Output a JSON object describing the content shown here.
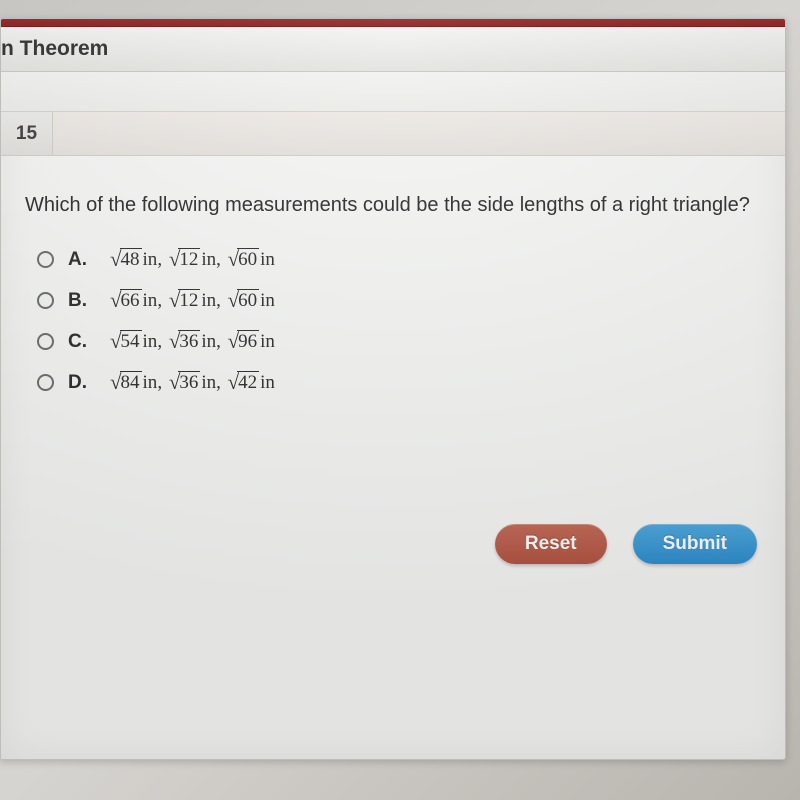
{
  "header": {
    "title": "n Theorem"
  },
  "question_number": "15",
  "prompt": "Which of the following measurements could be the side lengths of a right triangle?",
  "options": [
    {
      "label": "A.",
      "values": [
        48,
        12,
        60
      ],
      "unit": "in"
    },
    {
      "label": "B.",
      "values": [
        66,
        12,
        60
      ],
      "unit": "in"
    },
    {
      "label": "C.",
      "values": [
        54,
        36,
        96
      ],
      "unit": "in"
    },
    {
      "label": "D.",
      "values": [
        84,
        36,
        42
      ],
      "unit": "in"
    }
  ],
  "buttons": {
    "reset": "Reset",
    "submit": "Submit"
  },
  "colors": {
    "accent_red": "#8a1a1a",
    "reset_btn": "#b35443",
    "submit_btn": "#2f8fcf",
    "panel_bg": "#f6f7f5",
    "text": "#2b2b2b"
  }
}
